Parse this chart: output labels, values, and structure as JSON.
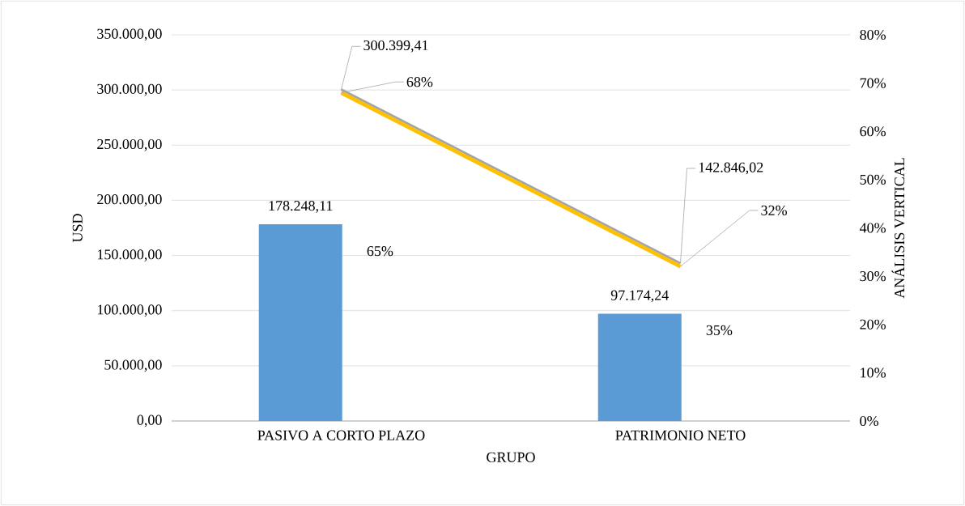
{
  "chart_data": {
    "type": "bar",
    "xlabel": "GRUPO",
    "ylabel": "USD",
    "y2label": "ANÁLISIS VERTICAL",
    "categories": [
      "PASIVO A CORTO PLAZO",
      "PATRIMONIO NETO"
    ],
    "series": [
      {
        "color": "#5b9bd5",
        "values": [
          178248.11,
          97174.24
        ],
        "value_labels": [
          "178.248,11",
          "97.174,24"
        ]
      },
      {
        "type": "line",
        "color": "#a5a5a5",
        "values": [
          300399.41,
          142846.02
        ],
        "value_labels": [
          "300.399,41",
          "142.846,02"
        ]
      },
      {
        "type": "line",
        "axis": "y2",
        "color": "#ffc000",
        "values": [
          68,
          32
        ],
        "value_labels": [
          "68%",
          "32%"
        ]
      }
    ],
    "annotations": [
      "65%",
      "35%"
    ],
    "ylim": [
      0,
      350000
    ],
    "yticks": [
      {
        "value": 0,
        "label": "0,00"
      },
      {
        "value": 50000,
        "label": "50.000,00"
      },
      {
        "value": 100000,
        "label": "100.000,00"
      },
      {
        "value": 150000,
        "label": "150.000,00"
      },
      {
        "value": 200000,
        "label": "200.000,00"
      },
      {
        "value": 250000,
        "label": "250.000,00"
      },
      {
        "value": 300000,
        "label": "300.000,00"
      },
      {
        "value": 350000,
        "label": "350.000,00"
      }
    ],
    "y2lim": [
      0,
      80
    ],
    "y2ticks": [
      {
        "value": 0,
        "label": "0%"
      },
      {
        "value": 10,
        "label": "10%"
      },
      {
        "value": 20,
        "label": "20%"
      },
      {
        "value": 30,
        "label": "30%"
      },
      {
        "value": 40,
        "label": "40%"
      },
      {
        "value": 50,
        "label": "50%"
      },
      {
        "value": 60,
        "label": "60%"
      },
      {
        "value": 70,
        "label": "70%"
      },
      {
        "value": 80,
        "label": "80%"
      }
    ],
    "grid": "y"
  }
}
